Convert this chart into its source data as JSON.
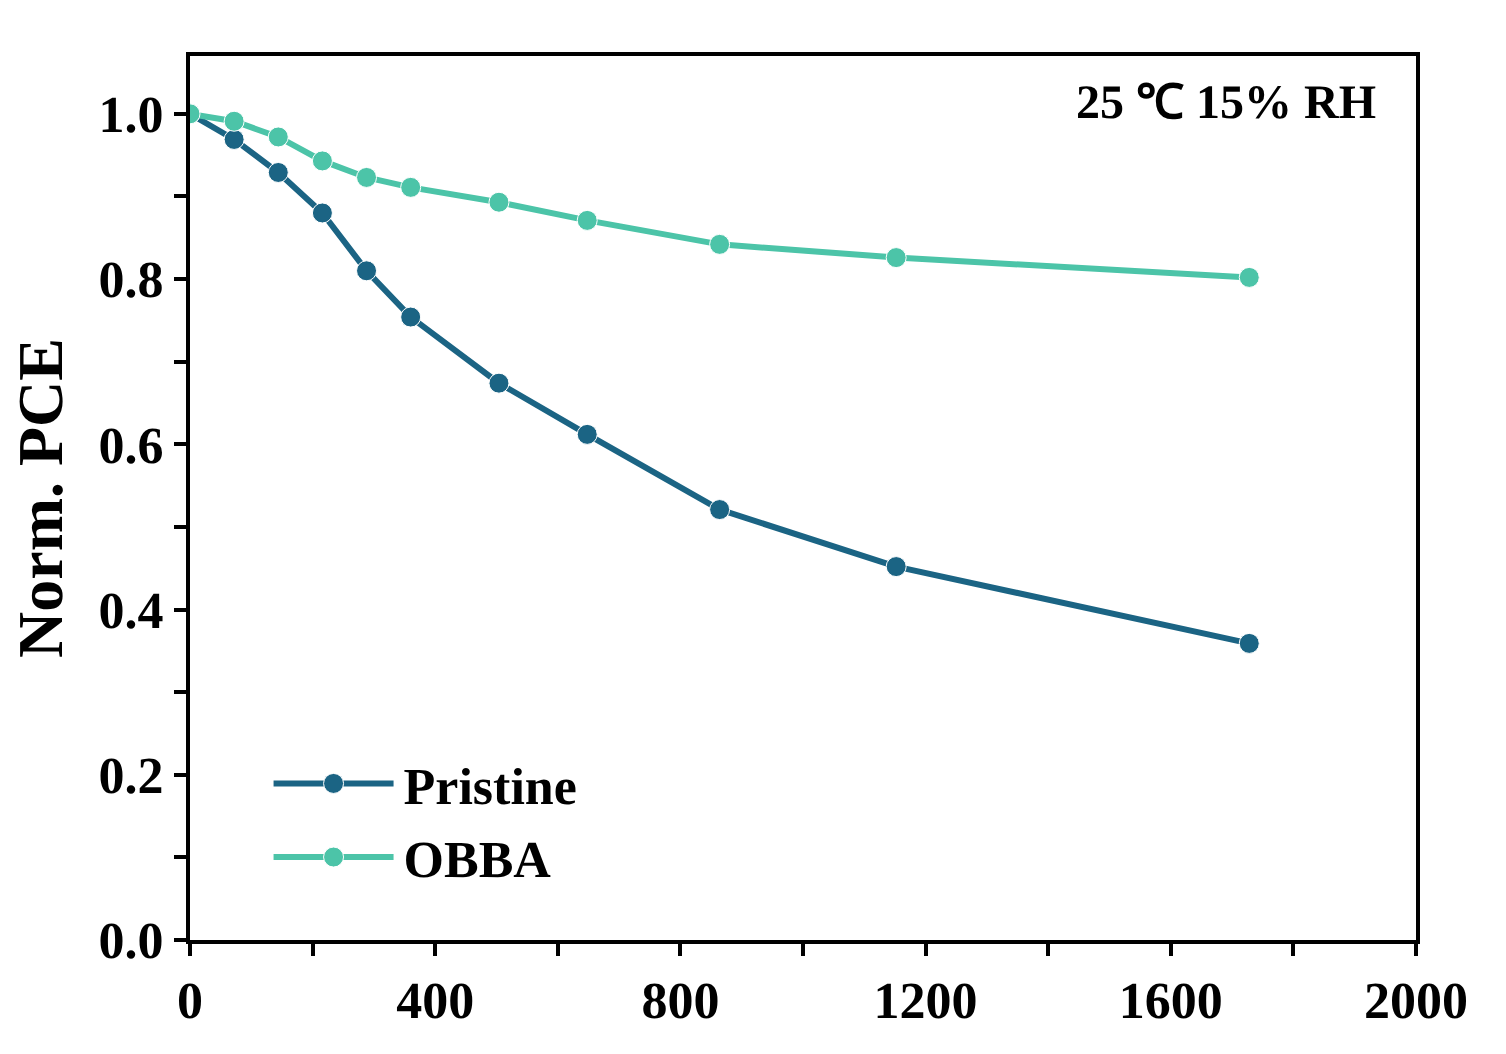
{
  "chart_data": {
    "type": "line",
    "ylabel": "Norm. PCE",
    "annotations": [
      "25 ℃ 15% RH"
    ],
    "x": [
      0,
      72,
      144,
      216,
      288,
      360,
      504,
      648,
      864,
      1152,
      1728
    ],
    "series": [
      {
        "name": "Pristine",
        "color": "#1b6484",
        "values": [
          1.0,
          0.969,
          0.929,
          0.88,
          0.81,
          0.754,
          0.674,
          0.612,
          0.521,
          0.452,
          0.359
        ]
      },
      {
        "name": "OBBA",
        "color": "#4cc4a8",
        "values": [
          1.0,
          0.991,
          0.972,
          0.943,
          0.923,
          0.911,
          0.893,
          0.871,
          0.842,
          0.826,
          0.802
        ]
      }
    ],
    "xlim": [
      0,
      2000
    ],
    "ylim": [
      0,
      1.07
    ],
    "xticks": [
      0,
      {
        "value": 200,
        "label": null
      },
      400,
      {
        "value": 600,
        "label": null
      },
      800,
      {
        "value": 1000,
        "label": null
      },
      1200,
      {
        "value": 1400,
        "label": null
      },
      1600,
      {
        "value": 1800,
        "label": null
      },
      2000
    ],
    "yticks": [
      {
        "value": 0,
        "label": "0.0"
      },
      {
        "value": 0.1,
        "label": null
      },
      {
        "value": 0.2,
        "label": "0.2"
      },
      {
        "value": 0.3,
        "label": null
      },
      {
        "value": 0.4,
        "label": "0.4"
      },
      {
        "value": 0.5,
        "label": null
      },
      {
        "value": 0.6,
        "label": "0.6"
      },
      {
        "value": 0.7,
        "label": null
      },
      {
        "value": 0.8,
        "label": "0.8"
      },
      {
        "value": 0.9,
        "label": null
      },
      {
        "value": 1.0,
        "label": "1.0"
      }
    ],
    "legend": "bottom left",
    "marker": "circle",
    "line_style": "solid"
  }
}
